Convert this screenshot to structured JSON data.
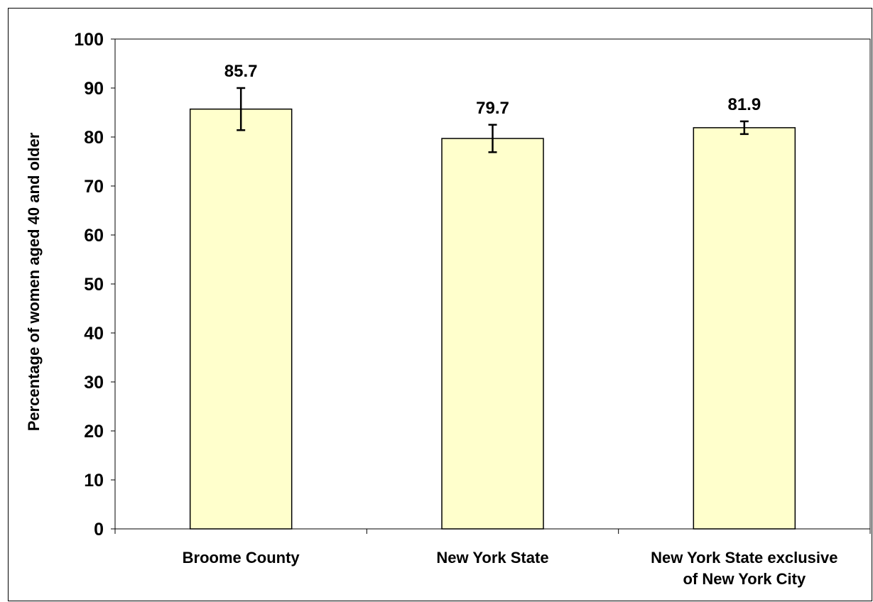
{
  "chart_data": {
    "type": "bar",
    "title": "",
    "xlabel": "",
    "ylabel": "Percentage of women aged 40 and older",
    "ylim": [
      0,
      100
    ],
    "yticks": [
      0,
      10,
      20,
      30,
      40,
      50,
      60,
      70,
      80,
      90,
      100
    ],
    "categories": [
      [
        "Broome County"
      ],
      [
        "New York State"
      ],
      [
        "New York State exclusive",
        "of New York City"
      ]
    ],
    "values": [
      85.7,
      79.7,
      81.9
    ],
    "data_labels": [
      "85.7",
      "79.7",
      "81.9"
    ],
    "error_bars": [
      {
        "low": 81.4,
        "high": 90.0
      },
      {
        "low": 76.9,
        "high": 82.5
      },
      {
        "low": 80.6,
        "high": 83.2
      }
    ],
    "grid": false,
    "legend": "none",
    "colors": {
      "bar_fill": "#ffffcc",
      "bar_stroke": "#000000",
      "axis": "#000000"
    }
  }
}
